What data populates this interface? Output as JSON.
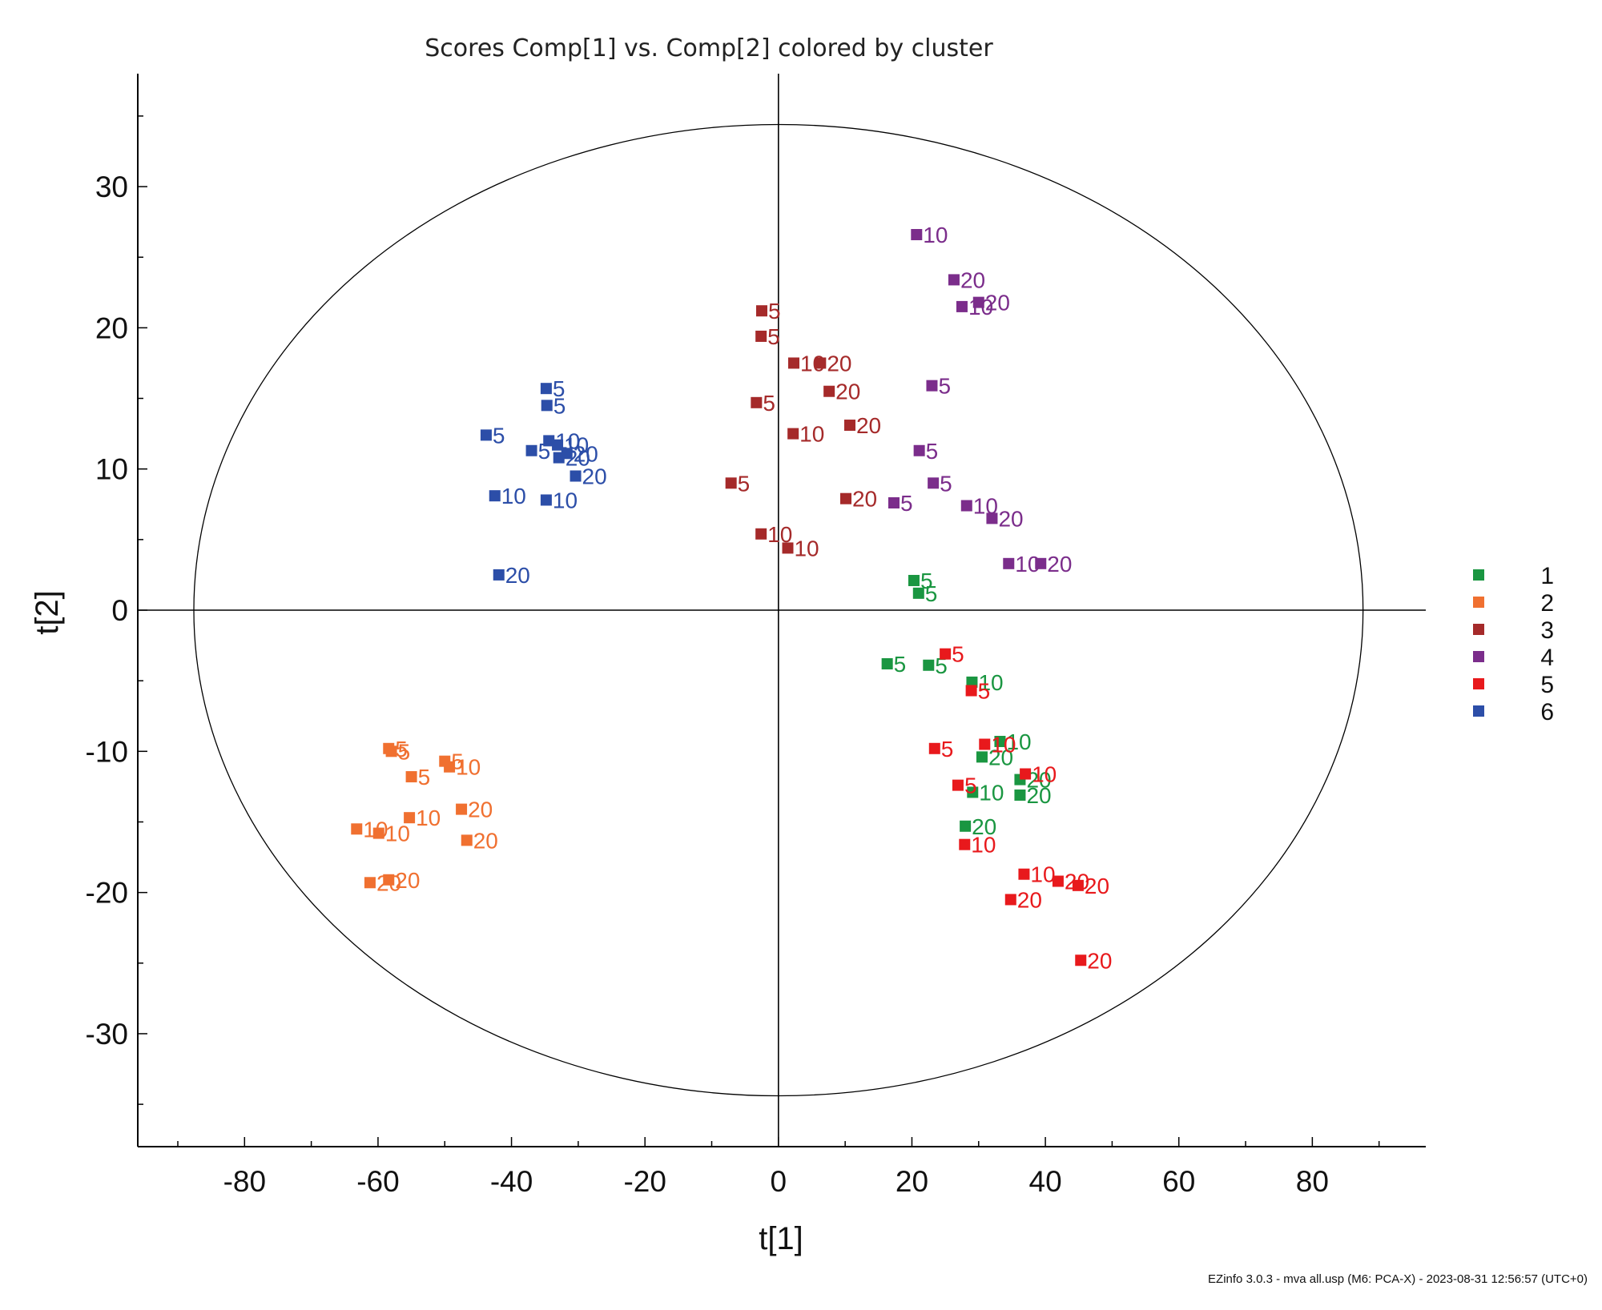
{
  "chart_data": {
    "type": "scatter",
    "title": "Scores Comp[1] vs. Comp[2] colored by cluster",
    "xlabel": "t[1]",
    "ylabel": "t[2]",
    "xlim": [
      -96,
      97
    ],
    "ylim": [
      -38,
      38
    ],
    "xticks": [
      -80,
      -60,
      -40,
      -20,
      0,
      20,
      40,
      60,
      80
    ],
    "yticks": [
      -30,
      -20,
      -10,
      0,
      10,
      20,
      30
    ],
    "ellipse": {
      "rx": 87.6,
      "ry": 34.4
    },
    "legend": {
      "placement": "right",
      "entries": [
        {
          "cluster": "1",
          "color": "#1a9641"
        },
        {
          "cluster": "2",
          "color": "#f07030"
        },
        {
          "cluster": "3",
          "color": "#a52a2a"
        },
        {
          "cluster": "4",
          "color": "#7b2d8b"
        },
        {
          "cluster": "5",
          "color": "#e8191c"
        },
        {
          "cluster": "6",
          "color": "#2c4ea8"
        }
      ]
    },
    "series": [
      {
        "cluster": "1",
        "color": "#1a9641",
        "points": [
          {
            "x": 20.3,
            "y": 2.1,
            "label": "5"
          },
          {
            "x": 21,
            "y": 1.2,
            "label": "5"
          },
          {
            "x": 16.3,
            "y": -3.8,
            "label": "5"
          },
          {
            "x": 22.5,
            "y": -3.9,
            "label": "5"
          },
          {
            "x": 29,
            "y": -5.1,
            "label": "10"
          },
          {
            "x": 33.2,
            "y": -9.3,
            "label": "10"
          },
          {
            "x": 30.5,
            "y": -10.4,
            "label": "20"
          },
          {
            "x": 36.2,
            "y": -12,
            "label": "20"
          },
          {
            "x": 29.1,
            "y": -12.9,
            "label": "10"
          },
          {
            "x": 36.2,
            "y": -13.1,
            "label": "20"
          },
          {
            "x": 28,
            "y": -15.3,
            "label": "20"
          }
        ]
      },
      {
        "cluster": "2",
        "color": "#f07030",
        "points": [
          {
            "x": -58.4,
            "y": -9.8,
            "label": "5"
          },
          {
            "x": -58,
            "y": -10,
            "label": "5"
          },
          {
            "x": -50,
            "y": -10.7,
            "label": "5"
          },
          {
            "x": -49.3,
            "y": -11.1,
            "label": "10"
          },
          {
            "x": -55,
            "y": -11.8,
            "label": "5"
          },
          {
            "x": -47.5,
            "y": -14.1,
            "label": "20"
          },
          {
            "x": -55.3,
            "y": -14.7,
            "label": "10"
          },
          {
            "x": -46.7,
            "y": -16.3,
            "label": "20"
          },
          {
            "x": -63.2,
            "y": -15.5,
            "label": "10"
          },
          {
            "x": -59.9,
            "y": -15.8,
            "label": "10"
          },
          {
            "x": -61.2,
            "y": -19.3,
            "label": "20"
          },
          {
            "x": -58.4,
            "y": -19.1,
            "label": "20"
          }
        ]
      },
      {
        "cluster": "3",
        "color": "#a52a2a",
        "points": [
          {
            "x": -2.5,
            "y": 21.2,
            "label": "5"
          },
          {
            "x": -2.6,
            "y": 19.4,
            "label": "5"
          },
          {
            "x": 2.3,
            "y": 17.5,
            "label": "10"
          },
          {
            "x": 6.3,
            "y": 17.5,
            "label": "20"
          },
          {
            "x": 7.6,
            "y": 15.5,
            "label": "20"
          },
          {
            "x": -3.3,
            "y": 14.7,
            "label": "5"
          },
          {
            "x": 2.2,
            "y": 12.5,
            "label": "10"
          },
          {
            "x": 10.7,
            "y": 13.1,
            "label": "20"
          },
          {
            "x": -7.1,
            "y": 9,
            "label": "5"
          },
          {
            "x": 10.1,
            "y": 7.9,
            "label": "20"
          },
          {
            "x": -2.6,
            "y": 5.4,
            "label": "10"
          },
          {
            "x": 1.4,
            "y": 4.4,
            "label": "10"
          }
        ]
      },
      {
        "cluster": "4",
        "color": "#7b2d8b",
        "points": [
          {
            "x": 20.7,
            "y": 26.6,
            "label": "10"
          },
          {
            "x": 26.3,
            "y": 23.4,
            "label": "20"
          },
          {
            "x": 27.5,
            "y": 21.5,
            "label": "10"
          },
          {
            "x": 30,
            "y": 21.8,
            "label": "20"
          },
          {
            "x": 23,
            "y": 15.9,
            "label": "5"
          },
          {
            "x": 21.1,
            "y": 11.3,
            "label": "5"
          },
          {
            "x": 23.2,
            "y": 9,
            "label": "5"
          },
          {
            "x": 17.3,
            "y": 7.6,
            "label": "5"
          },
          {
            "x": 28.2,
            "y": 7.4,
            "label": "10"
          },
          {
            "x": 32,
            "y": 6.5,
            "label": "20"
          },
          {
            "x": 34.5,
            "y": 3.3,
            "label": "10"
          },
          {
            "x": 39.3,
            "y": 3.3,
            "label": "20"
          }
        ]
      },
      {
        "cluster": "5",
        "color": "#e8191c",
        "points": [
          {
            "x": 25,
            "y": -3.1,
            "label": "5"
          },
          {
            "x": 28.9,
            "y": -5.7,
            "label": "5"
          },
          {
            "x": 23.4,
            "y": -9.8,
            "label": "5"
          },
          {
            "x": 30.9,
            "y": -9.5,
            "label": "10"
          },
          {
            "x": 37,
            "y": -11.6,
            "label": "10"
          },
          {
            "x": 26.9,
            "y": -12.4,
            "label": "5"
          },
          {
            "x": 27.9,
            "y": -16.6,
            "label": "10"
          },
          {
            "x": 36.8,
            "y": -18.7,
            "label": "10"
          },
          {
            "x": 41.9,
            "y": -19.2,
            "label": "20"
          },
          {
            "x": 44.9,
            "y": -19.5,
            "label": "20"
          },
          {
            "x": 34.8,
            "y": -20.5,
            "label": "20"
          },
          {
            "x": 45.3,
            "y": -24.8,
            "label": "20"
          }
        ]
      },
      {
        "cluster": "6",
        "color": "#2c4ea8",
        "points": [
          {
            "x": -34.8,
            "y": 15.7,
            "label": "5"
          },
          {
            "x": -34.7,
            "y": 14.5,
            "label": "5"
          },
          {
            "x": -43.8,
            "y": 12.4,
            "label": "5"
          },
          {
            "x": -34.4,
            "y": 12,
            "label": "10"
          },
          {
            "x": -33.1,
            "y": 11.7,
            "label": "10"
          },
          {
            "x": -37,
            "y": 11.3,
            "label": "5"
          },
          {
            "x": -31.7,
            "y": 11.1,
            "label": "20"
          },
          {
            "x": -32.9,
            "y": 10.8,
            "label": "20"
          },
          {
            "x": -30.4,
            "y": 9.5,
            "label": "20"
          },
          {
            "x": -42.5,
            "y": 8.1,
            "label": "10"
          },
          {
            "x": -34.8,
            "y": 7.8,
            "label": "10"
          },
          {
            "x": -41.9,
            "y": 2.5,
            "label": "20"
          }
        ]
      }
    ]
  },
  "footer": "EZinfo 3.0.3 - mva all.usp (M6: PCA-X) - 2023-08-31 12:56:57 (UTC+0)"
}
